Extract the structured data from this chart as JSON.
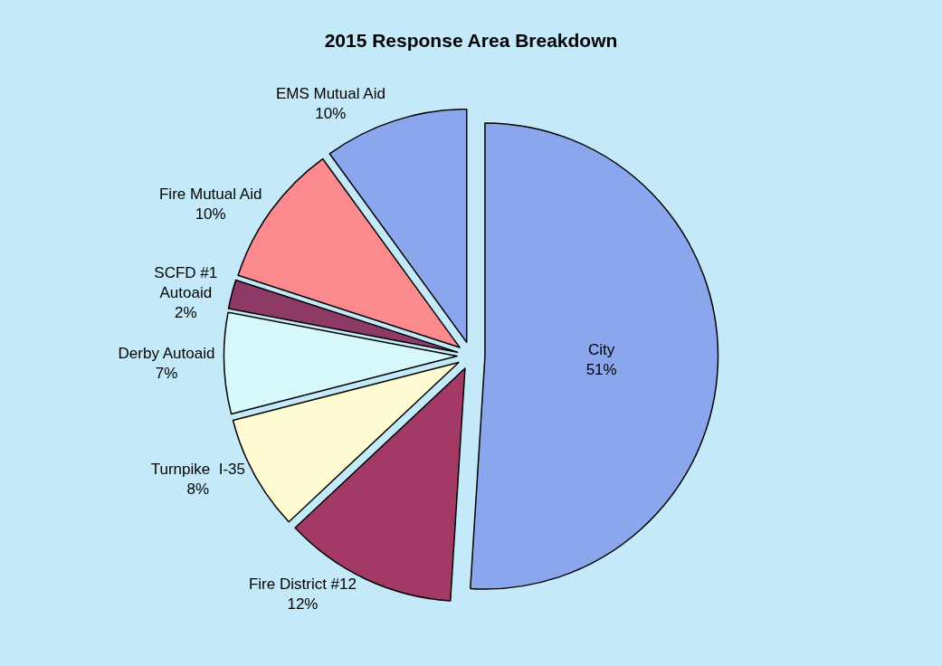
{
  "chart_data": {
    "type": "pie",
    "title": "2015 Response Area Breakdown",
    "categories": [
      "City",
      "Fire District #12",
      "Turnpike  I-35",
      "Derby Autoaid",
      "SCFD #1\nAutoaid",
      "Fire Mutual Aid",
      "EMS Mutual Aid"
    ],
    "values": [
      51,
      12,
      8,
      7,
      2,
      10,
      10
    ],
    "value_labels": [
      "51%",
      "12%",
      "8%",
      "7%",
      "2%",
      "10%",
      "10%"
    ],
    "colors": [
      "#8aa6ec",
      "#a33a66",
      "#fffbd2",
      "#d6f8fb",
      "#8e3a66",
      "#fb8a8e",
      "#8aa6ec"
    ],
    "legend": false
  }
}
